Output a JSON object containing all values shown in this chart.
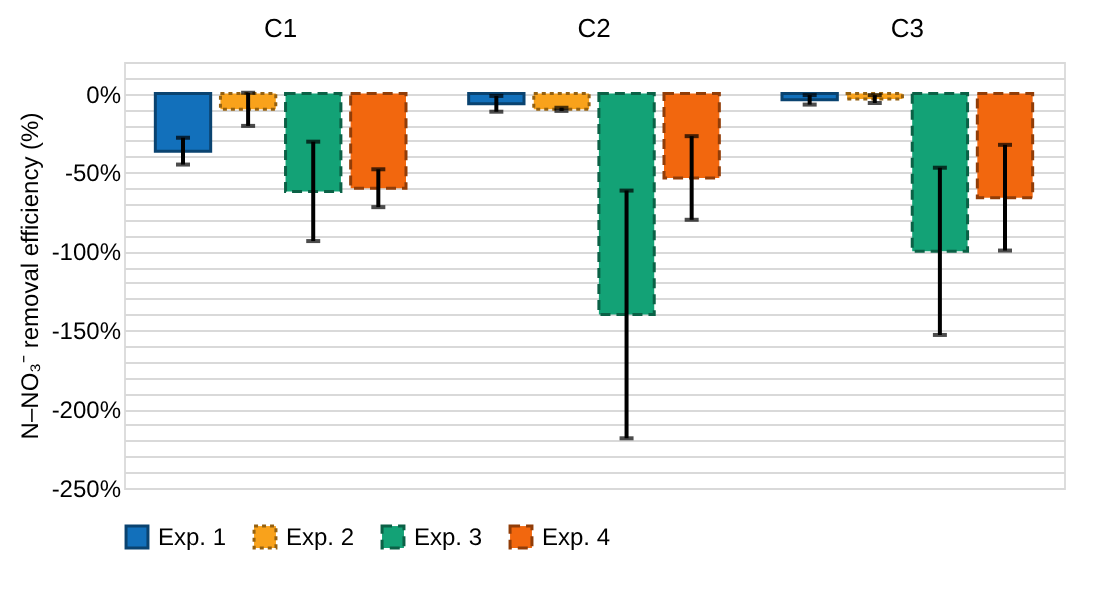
{
  "chart_data": {
    "type": "bar",
    "ylabel": "N–NO₃⁻ removal efficiency (%)",
    "categories": [
      "C1",
      "C2",
      "C3"
    ],
    "series": [
      {
        "name": "Exp. 1",
        "color": "#1270bb",
        "line_style": "solid",
        "values": [
          -36.5,
          -6.5,
          -4
        ],
        "errors": [
          8.5,
          5,
          3
        ]
      },
      {
        "name": "Exp. 2",
        "color": "#f9a21b",
        "line_style": "dotted",
        "values": [
          -10,
          -10,
          -3.5
        ],
        "errors": [
          10.5,
          1,
          2.5
        ]
      },
      {
        "name": "Exp. 3",
        "color": "#13a276",
        "line_style": "dashed",
        "values": [
          -62,
          -140,
          -100
        ],
        "errors": [
          31.5,
          78.5,
          53
        ]
      },
      {
        "name": "Exp. 4",
        "color": "#f2670e",
        "line_style": "dashed",
        "values": [
          -60,
          -53.5,
          -66
        ],
        "errors": [
          12,
          26.5,
          33.5
        ]
      }
    ],
    "ylim": [
      -250,
      20
    ],
    "yticks": [
      {
        "value": -250,
        "label": "-250%"
      },
      {
        "value": -240,
        "label": null
      },
      {
        "value": -230,
        "label": null
      },
      {
        "value": -220,
        "label": null
      },
      {
        "value": -210,
        "label": null
      },
      {
        "value": -200,
        "label": "-200%"
      },
      {
        "value": -190,
        "label": null
      },
      {
        "value": -180,
        "label": null
      },
      {
        "value": -170,
        "label": null
      },
      {
        "value": -160,
        "label": null
      },
      {
        "value": -150,
        "label": "-150%"
      },
      {
        "value": -140,
        "label": null
      },
      {
        "value": -130,
        "label": null
      },
      {
        "value": -120,
        "label": null
      },
      {
        "value": -110,
        "label": null
      },
      {
        "value": -100,
        "label": "-100%"
      },
      {
        "value": -90,
        "label": null
      },
      {
        "value": -80,
        "label": null
      },
      {
        "value": -70,
        "label": null
      },
      {
        "value": -60,
        "label": null
      },
      {
        "value": -50,
        "label": "-50%"
      },
      {
        "value": -40,
        "label": null
      },
      {
        "value": -30,
        "label": null
      },
      {
        "value": -20,
        "label": null
      },
      {
        "value": -10,
        "label": null
      },
      {
        "value": 0,
        "label": "0%"
      },
      {
        "value": 10,
        "label": null
      },
      {
        "value": 20,
        "label": null
      }
    ],
    "grid": true,
    "legend": "bottom"
  }
}
